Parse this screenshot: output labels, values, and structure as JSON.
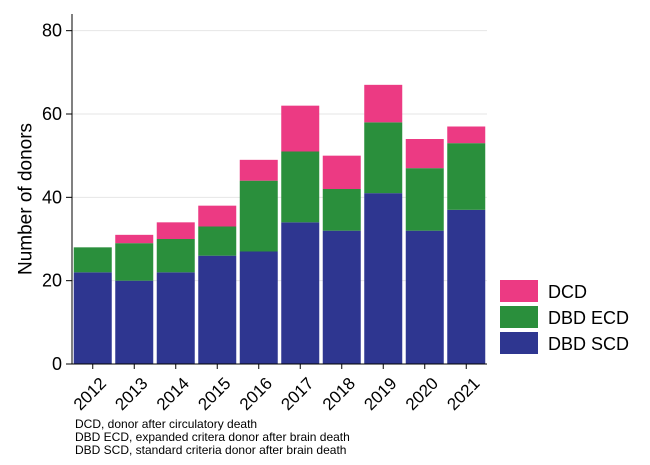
{
  "chart_data": {
    "type": "bar",
    "stacked": true,
    "categories": [
      "2012",
      "2013",
      "2014",
      "2015",
      "2016",
      "2017",
      "2018",
      "2019",
      "2020",
      "2021"
    ],
    "series": [
      {
        "name": "DBD SCD",
        "color": "#2e3690",
        "values": [
          22,
          20,
          22,
          26,
          27,
          34,
          32,
          41,
          32,
          37
        ]
      },
      {
        "name": "DBD ECD",
        "color": "#2a8f3c",
        "values": [
          6,
          9,
          8,
          7,
          17,
          17,
          10,
          17,
          15,
          16
        ]
      },
      {
        "name": "DCD",
        "color": "#ec3a83",
        "values": [
          0,
          2,
          4,
          5,
          5,
          11,
          8,
          9,
          7,
          4
        ]
      }
    ],
    "ylabel": "Number of donors",
    "xlabel": "",
    "ylim": [
      0,
      84
    ],
    "yticks": [
      0,
      20,
      40,
      60,
      80
    ],
    "grid": true,
    "legend_position": "right",
    "legend_order": [
      "DCD",
      "DBD ECD",
      "DBD SCD"
    ]
  },
  "footnotes": [
    "DCD, donor after circulatory death",
    "DBD ECD, expanded critera donor after brain death",
    "DBD SCD, standard criteria donor after brain death"
  ]
}
